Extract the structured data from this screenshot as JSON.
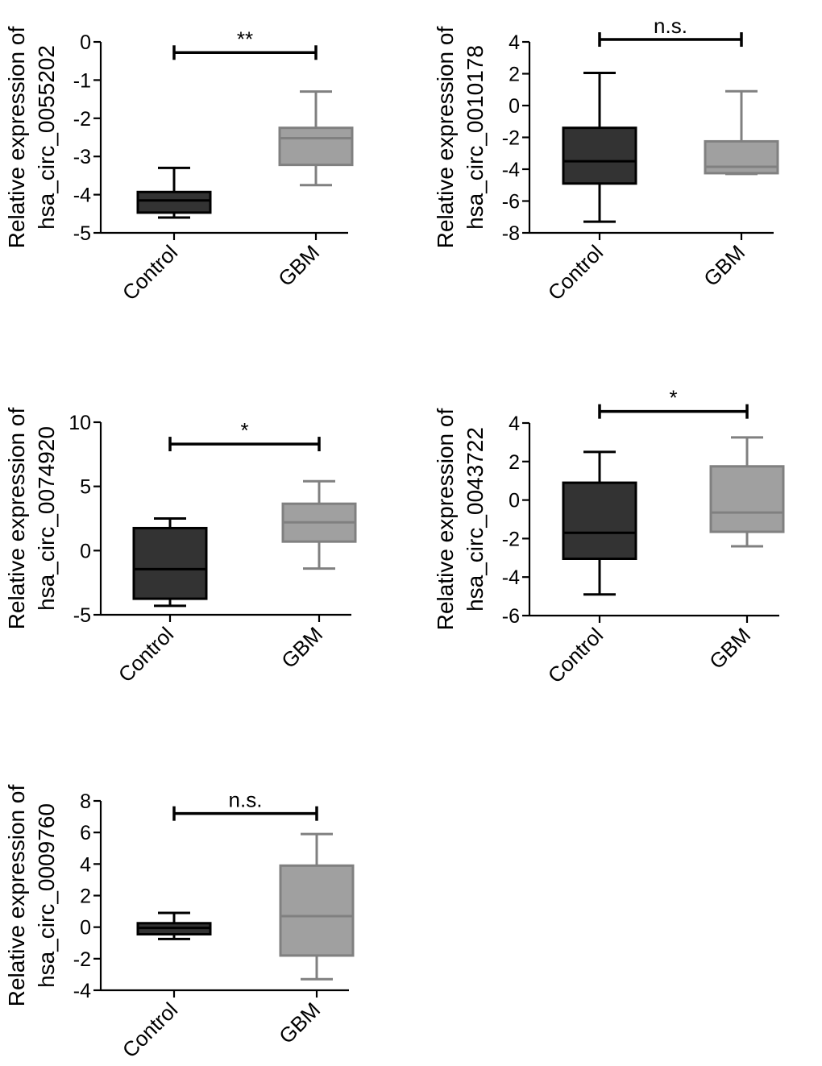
{
  "chart_data": [
    {
      "type": "box",
      "ylabel_line1": "Relative expression of",
      "ylabel_line2": "hsa_circ_0055202",
      "categories": [
        "Control",
        "GBM"
      ],
      "ylim": [
        -5,
        0
      ],
      "yticks": [
        0,
        -1,
        -2,
        -3,
        -4,
        -5
      ],
      "ytick_labels": [
        "0",
        "-1",
        "-2",
        "-3",
        "-4",
        "-5"
      ],
      "boxes": [
        {
          "name": "Control",
          "min": -4.6,
          "q1": -4.47,
          "median": -4.15,
          "q3": -3.93,
          "max": -3.3,
          "color": "#333333"
        },
        {
          "name": "GBM",
          "min": -3.75,
          "q1": -3.22,
          "median": -2.52,
          "q3": -2.25,
          "max": -1.3,
          "color": "#a0a0a0"
        }
      ],
      "significance": {
        "label": "**",
        "y": -0.28
      }
    },
    {
      "type": "box",
      "ylabel_line1": "Relative expression of",
      "ylabel_line2": "hsa_circ_0010178",
      "categories": [
        "Control",
        "GBM"
      ],
      "ylim": [
        -8,
        4
      ],
      "yticks": [
        4,
        2,
        0,
        -2,
        -4,
        -6,
        -8
      ],
      "ytick_labels": [
        "4",
        "2",
        "0",
        "-2",
        "-4",
        "-6",
        "-8"
      ],
      "boxes": [
        {
          "name": "Control",
          "min": -7.3,
          "q1": -4.9,
          "median": -3.5,
          "q3": -1.4,
          "max": 2.05,
          "color": "#333333"
        },
        {
          "name": "GBM",
          "min": -4.3,
          "q1": -4.25,
          "median": -3.85,
          "q3": -2.25,
          "max": 0.9,
          "color": "#a0a0a0"
        }
      ],
      "significance": {
        "label": "n.s.",
        "y": 4.15
      }
    },
    {
      "type": "box",
      "ylabel_line1": "Relative expression of",
      "ylabel_line2": "hsa_circ_0074920",
      "categories": [
        "Control",
        "GBM"
      ],
      "ylim": [
        -5,
        10
      ],
      "yticks": [
        10,
        5,
        0,
        -5
      ],
      "ytick_labels": [
        "10",
        "5",
        "0",
        "-5"
      ],
      "boxes": [
        {
          "name": "Control",
          "min": -4.3,
          "q1": -3.75,
          "median": -1.45,
          "q3": 1.75,
          "max": 2.5,
          "color": "#333333"
        },
        {
          "name": "GBM",
          "min": -1.4,
          "q1": 0.7,
          "median": 2.2,
          "q3": 3.65,
          "max": 5.4,
          "color": "#a0a0a0"
        }
      ],
      "significance": {
        "label": "*",
        "y": 8.3
      }
    },
    {
      "type": "box",
      "ylabel_line1": "Relative expression of",
      "ylabel_line2": "hsa_circ_0043722",
      "categories": [
        "Control",
        "GBM"
      ],
      "ylim": [
        -6,
        4
      ],
      "yticks": [
        4,
        2,
        0,
        -2,
        -4,
        -6
      ],
      "ytick_labels": [
        "4",
        "2",
        "0",
        "-2",
        "-4",
        "-6"
      ],
      "boxes": [
        {
          "name": "Control",
          "min": -4.9,
          "q1": -3.05,
          "median": -1.7,
          "q3": 0.9,
          "max": 2.5,
          "color": "#333333"
        },
        {
          "name": "GBM",
          "min": -2.4,
          "q1": -1.65,
          "median": -0.65,
          "q3": 1.75,
          "max": 3.25,
          "color": "#a0a0a0"
        }
      ],
      "significance": {
        "label": "*",
        "y": 4.6
      }
    },
    {
      "type": "box",
      "ylabel_line1": "Relative expression of",
      "ylabel_line2": "hsa_circ_0009760",
      "categories": [
        "Control",
        "GBM"
      ],
      "ylim": [
        -4,
        8
      ],
      "yticks": [
        8,
        6,
        4,
        2,
        0,
        -2,
        -4
      ],
      "ytick_labels": [
        "8",
        "6",
        "4",
        "2",
        "0",
        "-2",
        "-4"
      ],
      "boxes": [
        {
          "name": "Control",
          "min": -0.75,
          "q1": -0.45,
          "median": -0.05,
          "q3": 0.25,
          "max": 0.9,
          "color": "#333333"
        },
        {
          "name": "GBM",
          "min": -3.3,
          "q1": -1.8,
          "median": 0.7,
          "q3": 3.9,
          "max": 5.9,
          "color": "#a0a0a0"
        }
      ],
      "significance": {
        "label": "n.s.",
        "y": 7.2
      }
    }
  ]
}
